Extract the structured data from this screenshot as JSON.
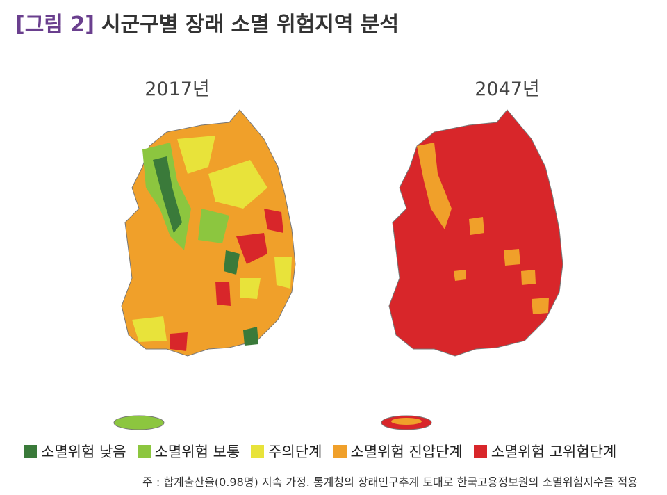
{
  "header": {
    "figure_label": "[그림 2]",
    "title": "시군구별 장래 소멸 위험지역 분석"
  },
  "maps": [
    {
      "year": "2017년"
    },
    {
      "year": "2047년"
    }
  ],
  "legend": [
    {
      "label": "소멸위험 낮음",
      "color": "#3a7a3a"
    },
    {
      "label": "소멸위험 보통",
      "color": "#8cc63f"
    },
    {
      "label": "주의단계",
      "color": "#e8e33a"
    },
    {
      "label": "소멸위험 진압단계",
      "color": "#f0a02a"
    },
    {
      "label": "소멸위험 고위험단계",
      "color": "#d8262a"
    }
  ],
  "note": "주 : 합계출산율(0.98명) 지속 가정. 통계청의 장래인구추계 토대로 한국고용정보원의 소멸위험지수를 적용"
}
